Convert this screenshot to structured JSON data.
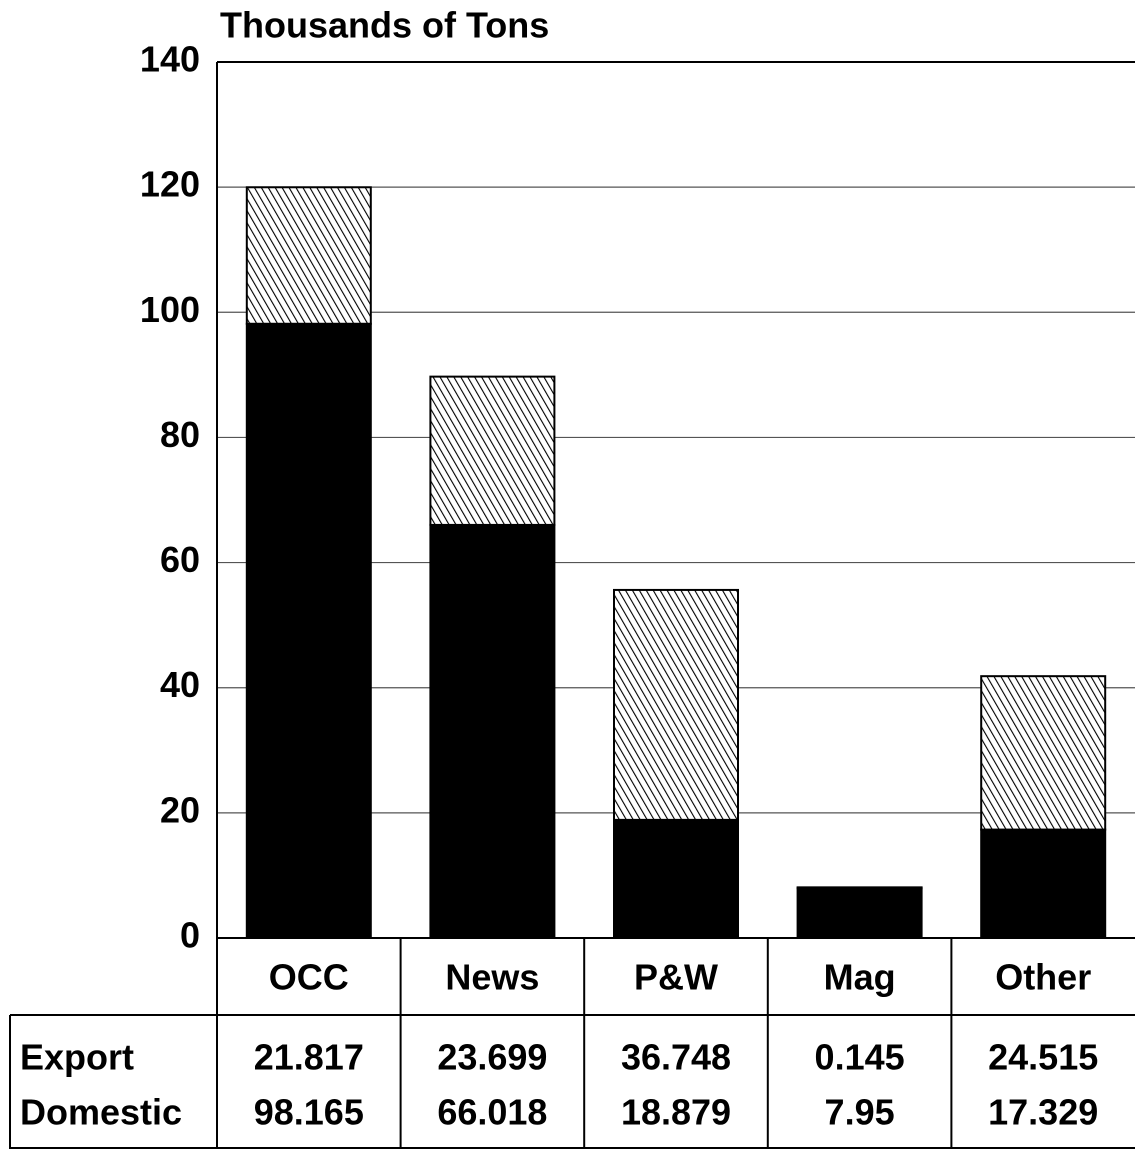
{
  "chart_data": {
    "type": "bar",
    "stacked": true,
    "y_axis_label": "Thousands of Tons",
    "categories": [
      "OCC",
      "News",
      "P&W",
      "Mag",
      "Other"
    ],
    "series": [
      {
        "name": "Domestic",
        "color": "#000000",
        "hatch": false,
        "values": [
          98.165,
          66.018,
          18.879,
          7.95,
          17.329
        ]
      },
      {
        "name": "Export",
        "color": "#000000",
        "hatch": true,
        "values": [
          21.817,
          23.699,
          36.748,
          0.145,
          24.515
        ]
      }
    ],
    "ylim": [
      0,
      140
    ],
    "yticks": [
      0,
      20,
      40,
      60,
      80,
      100,
      120,
      140
    ],
    "grid": true
  }
}
